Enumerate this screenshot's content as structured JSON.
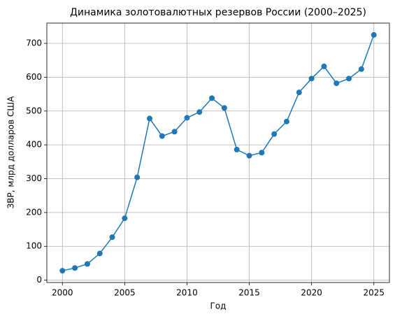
{
  "chart_data": {
    "type": "line",
    "title": "Динамика золотовалютных резервов России (2000–2025)",
    "xlabel": "Год",
    "ylabel": "ЗВР, млрд долларов США",
    "x": [
      2000,
      2001,
      2002,
      2003,
      2004,
      2005,
      2006,
      2007,
      2008,
      2009,
      2010,
      2011,
      2012,
      2013,
      2014,
      2015,
      2016,
      2017,
      2018,
      2019,
      2020,
      2021,
      2022,
      2023,
      2024,
      2025
    ],
    "series": [
      {
        "name": "ЗВР",
        "color": "#1f77b4",
        "values": [
          28,
          36,
          48,
          79,
          127,
          183,
          304,
          478,
          426,
          439,
          480,
          497,
          538,
          509,
          386,
          368,
          377,
          432,
          469,
          555,
          596,
          632,
          582,
          596,
          624,
          725
        ]
      }
    ],
    "xlim": [
      1998.75,
      2026.25
    ],
    "xticks": [
      2000,
      2005,
      2010,
      2015,
      2020,
      2025
    ],
    "ylim": [
      -7,
      760
    ],
    "yticks": [
      0,
      100,
      200,
      300,
      400,
      500,
      600,
      700
    ],
    "grid": true,
    "markers": true
  }
}
